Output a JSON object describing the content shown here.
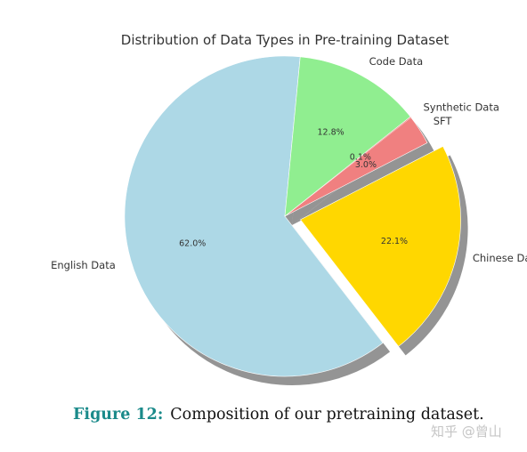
{
  "chart_data": {
    "type": "pie",
    "title": "Distribution of Data Types in Pre-training Dataset",
    "slices": [
      {
        "label": "English Data",
        "value": 62.0,
        "pct_label": "62.0%",
        "color": "#add8e6",
        "explode": false
      },
      {
        "label": "Chinese Data",
        "value": 22.1,
        "pct_label": "22.1%",
        "color": "#ffd700",
        "explode": true
      },
      {
        "label": "SFT",
        "value": 3.0,
        "pct_label": "3.0%",
        "color": "#f08080",
        "explode": false
      },
      {
        "label": "Synthetic Data",
        "value": 0.1,
        "pct_label": "0.1%",
        "color": "#f08080",
        "explode": false
      },
      {
        "label": "Code Data",
        "value": 12.8,
        "pct_label": "12.8%",
        "color": "#90ee90",
        "explode": false
      }
    ],
    "shadow": true
  },
  "caption": {
    "figure_number": "Figure 12:",
    "text": "Composition of our pretraining dataset."
  },
  "watermark": "知乎 @曾山"
}
